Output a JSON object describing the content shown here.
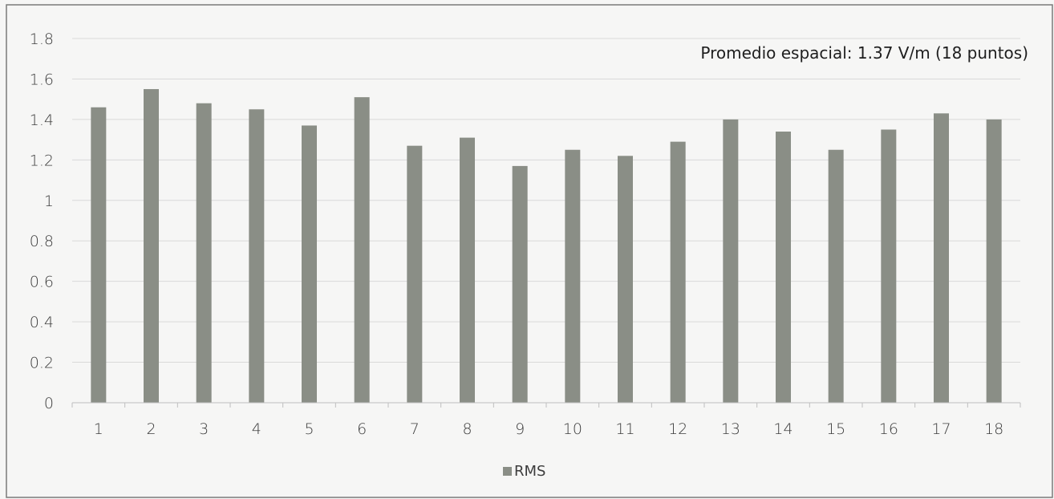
{
  "chart_data": {
    "type": "bar",
    "categories": [
      "1",
      "2",
      "3",
      "4",
      "5",
      "6",
      "7",
      "8",
      "9",
      "10",
      "11",
      "12",
      "13",
      "14",
      "15",
      "16",
      "17",
      "18"
    ],
    "series": [
      {
        "name": "RMS",
        "values": [
          1.46,
          1.55,
          1.48,
          1.45,
          1.37,
          1.51,
          1.27,
          1.31,
          1.17,
          1.25,
          1.22,
          1.29,
          1.4,
          1.34,
          1.25,
          1.35,
          1.43,
          1.4
        ]
      }
    ],
    "annotation": "Promedio espacial: 1.37 V/m (18 puntos)",
    "ylim": [
      0,
      1.8
    ],
    "yticks": [
      "0",
      "0.2",
      "0.4",
      "0.6",
      "0.8",
      "1",
      "1.2",
      "1.4",
      "1.6",
      "1.8"
    ],
    "grid": true,
    "legend_position": "bottom-center",
    "colors": {
      "bar": "#8a8e86",
      "grid": "#d9d9d9",
      "frame": "#7a7a7a"
    }
  }
}
